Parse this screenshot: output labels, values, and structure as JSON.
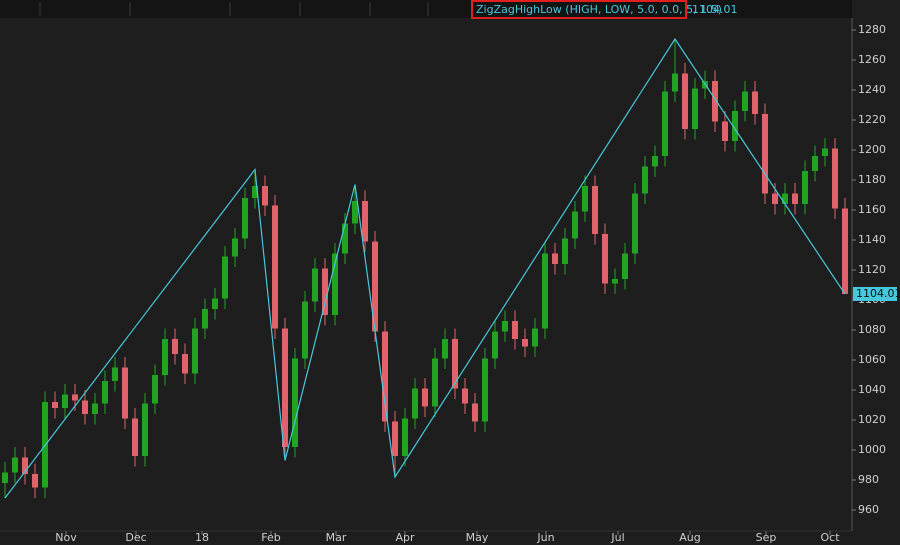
{
  "chart_data": {
    "type": "candlestick",
    "up_color": "#22a322",
    "down_color": "#e0636b",
    "ylim": [
      946,
      1286
    ],
    "yticks": [
      960,
      980,
      1000,
      1020,
      1040,
      1060,
      1080,
      1100,
      1120,
      1140,
      1160,
      1180,
      1200,
      1220,
      1240,
      1260,
      1280
    ],
    "xlim": [
      -0.5,
      84.7
    ],
    "xticks": [
      {
        "value": 6.1,
        "label": "Nov"
      },
      {
        "value": 13.1,
        "label": "Dec"
      },
      {
        "value": 19.7,
        "label": "18"
      },
      {
        "value": 26.6,
        "label": "Feb"
      },
      {
        "value": 33.1,
        "label": "Mar"
      },
      {
        "value": 40,
        "label": "Apr"
      },
      {
        "value": 47.2,
        "label": "May"
      },
      {
        "value": 54.1,
        "label": "Jun"
      },
      {
        "value": 61.3,
        "label": "Jul"
      },
      {
        "value": 68.5,
        "label": "Aug"
      },
      {
        "value": 76.1,
        "label": "Sep"
      },
      {
        "value": 82.5,
        "label": "Oct"
      }
    ],
    "grid": false,
    "open": [
      978,
      985,
      995,
      984,
      975,
      1032,
      1028,
      1037,
      1033,
      1024,
      1031,
      1046,
      1055,
      1021,
      996,
      1031,
      1050,
      1074,
      1064,
      1051,
      1081,
      1094,
      1101,
      1129,
      1141,
      1168,
      1176,
      1163,
      1081,
      1002,
      1061,
      1099,
      1121,
      1090,
      1131,
      1151,
      1166,
      1139,
      1079,
      1019,
      996,
      1021,
      1041,
      1029,
      1061,
      1074,
      1041,
      1031,
      1019,
      1061,
      1079,
      1086,
      1074,
      1069,
      1081,
      1131,
      1124,
      1141,
      1159,
      1176,
      1144,
      1111,
      1114,
      1131,
      1171,
      1189,
      1196,
      1239,
      1251,
      1214,
      1241,
      1246,
      1219,
      1206,
      1226,
      1239,
      1224,
      1171,
      1164,
      1171,
      1164,
      1186,
      1196,
      1201,
      1161
    ],
    "high": [
      992,
      1002,
      1002,
      991,
      1039,
      1039,
      1044,
      1044,
      1040,
      1038,
      1053,
      1062,
      1062,
      1028,
      1038,
      1057,
      1081,
      1081,
      1071,
      1088,
      1101,
      1108,
      1136,
      1148,
      1175,
      1187,
      1183,
      1170,
      1088,
      1068,
      1106,
      1128,
      1128,
      1138,
      1158,
      1177,
      1173,
      1146,
      1086,
      1026,
      1028,
      1048,
      1048,
      1068,
      1081,
      1081,
      1048,
      1038,
      1068,
      1086,
      1093,
      1093,
      1081,
      1088,
      1138,
      1138,
      1148,
      1166,
      1183,
      1183,
      1151,
      1121,
      1138,
      1178,
      1196,
      1203,
      1246,
      1274,
      1258,
      1248,
      1253,
      1253,
      1226,
      1233,
      1246,
      1246,
      1231,
      1178,
      1178,
      1178,
      1193,
      1203,
      1208,
      1208,
      1168
    ],
    "low": [
      968,
      978,
      977,
      968,
      968,
      1021,
      1021,
      1026,
      1017,
      1017,
      1024,
      1039,
      1014,
      989,
      989,
      1024,
      1043,
      1057,
      1044,
      1044,
      1074,
      1087,
      1094,
      1122,
      1134,
      1161,
      1156,
      1074,
      993,
      995,
      1054,
      1092,
      1083,
      1083,
      1124,
      1144,
      1132,
      1072,
      1012,
      982,
      989,
      1014,
      1022,
      1022,
      1054,
      1034,
      1024,
      1012,
      1012,
      1054,
      1072,
      1067,
      1062,
      1062,
      1074,
      1117,
      1117,
      1134,
      1152,
      1137,
      1104,
      1104,
      1107,
      1124,
      1164,
      1182,
      1189,
      1232,
      1207,
      1207,
      1234,
      1212,
      1199,
      1199,
      1219,
      1217,
      1164,
      1157,
      1157,
      1157,
      1157,
      1179,
      1189,
      1154,
      1104
    ],
    "close": [
      985,
      995,
      984,
      975,
      1032,
      1028,
      1037,
      1033,
      1024,
      1031,
      1046,
      1055,
      1021,
      996,
      1031,
      1050,
      1074,
      1064,
      1051,
      1081,
      1094,
      1101,
      1129,
      1141,
      1168,
      1176,
      1163,
      1081,
      1002,
      1061,
      1099,
      1121,
      1090,
      1131,
      1151,
      1166,
      1139,
      1079,
      1019,
      996,
      1021,
      1041,
      1029,
      1061,
      1074,
      1041,
      1031,
      1019,
      1061,
      1079,
      1086,
      1074,
      1069,
      1081,
      1131,
      1124,
      1141,
      1159,
      1176,
      1144,
      1111,
      1114,
      1131,
      1171,
      1189,
      1196,
      1239,
      1251,
      1214,
      1241,
      1246,
      1219,
      1206,
      1226,
      1239,
      1224,
      1171,
      1164,
      1171,
      1164,
      1186,
      1196,
      1201,
      1161,
      1104.01
    ],
    "zigzag": {
      "name": "ZigZagHighLow (HIGH, LOW, 5.0, 0.0, 5, 1.5)",
      "color": "#45c8dc",
      "x": [
        0,
        25,
        28,
        35,
        39,
        67,
        84
      ],
      "values": [
        968,
        1187,
        993,
        1177,
        982,
        1274,
        1104
      ]
    }
  }
}
